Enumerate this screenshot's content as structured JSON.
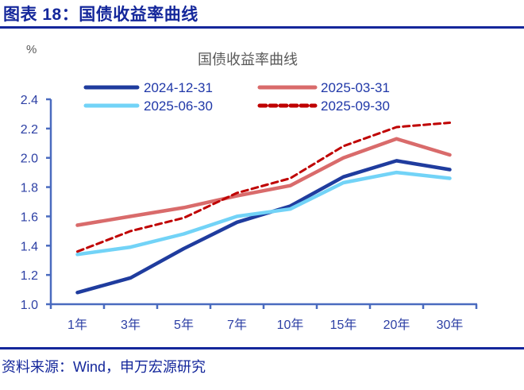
{
  "header": {
    "figure_title": "图表 18：国债收益率曲线"
  },
  "footer": {
    "source": "资料来源：Wind，申万宏源研究"
  },
  "colors": {
    "accent_navy": "#14279b",
    "axis_blue": "#4a6bbf",
    "tick_label_blue": "#2c3fa4",
    "legend_text_blue": "#2038a8",
    "chart_title_gray": "#595959"
  },
  "chart_data": {
    "type": "line",
    "title": "国债收益率曲线",
    "unit_label": "%",
    "categories": [
      "1年",
      "3年",
      "5年",
      "7年",
      "10年",
      "15年",
      "20年",
      "30年"
    ],
    "series": [
      {
        "name": "2024-12-31",
        "color": "#1f3c9e",
        "style": "solid",
        "values": [
          1.08,
          1.18,
          1.38,
          1.56,
          1.67,
          1.87,
          1.98,
          1.92
        ]
      },
      {
        "name": "2025-03-31",
        "color": "#d96b6b",
        "style": "solid",
        "values": [
          1.54,
          1.6,
          1.66,
          1.74,
          1.81,
          2.0,
          2.13,
          2.02
        ]
      },
      {
        "name": "2025-06-30",
        "color": "#72d3f7",
        "style": "solid",
        "values": [
          1.34,
          1.39,
          1.48,
          1.6,
          1.65,
          1.83,
          1.9,
          1.86
        ]
      },
      {
        "name": "2025-09-30",
        "color": "#bf0000",
        "style": "dashed",
        "values": [
          1.36,
          1.5,
          1.59,
          1.76,
          1.86,
          2.08,
          2.21,
          2.24
        ]
      }
    ],
    "ylim": [
      1.0,
      2.4
    ],
    "ytick_step": 0.2,
    "grid": false,
    "legend_position": "top"
  }
}
